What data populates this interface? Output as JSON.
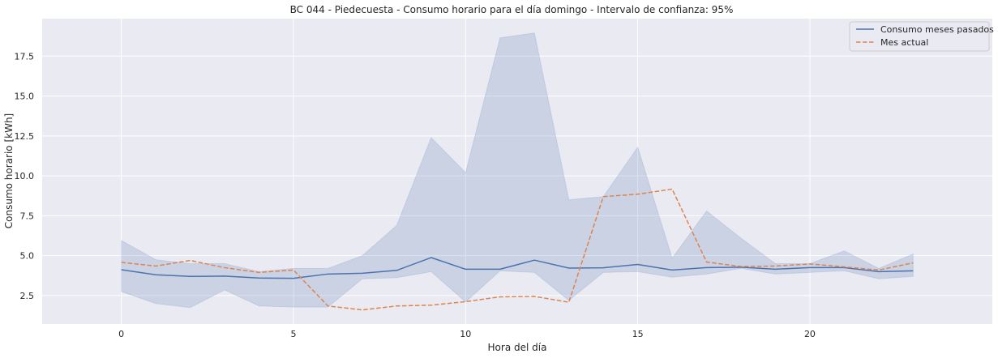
{
  "chart_data": {
    "type": "line",
    "title": "BC 044 - Piedecuesta - Consumo horario para el día domingo - Intervalo de confianza: 95%",
    "xlabel": "Hora del día",
    "ylabel": "Consumo horario [kWh]",
    "x": [
      0,
      1,
      2,
      3,
      4,
      5,
      6,
      7,
      8,
      9,
      10,
      11,
      12,
      13,
      14,
      15,
      16,
      17,
      18,
      19,
      20,
      21,
      22,
      23
    ],
    "xlim": [
      -2.3,
      25.3
    ],
    "ylim": [
      0.72,
      19.85
    ],
    "xticks": [
      0,
      5,
      10,
      15,
      20
    ],
    "yticks": [
      2.5,
      5.0,
      7.5,
      10.0,
      12.5,
      15.0,
      17.5
    ],
    "xtick_labels": [
      "0",
      "5",
      "10",
      "15",
      "20"
    ],
    "ytick_labels": [
      "2.5",
      "5.0",
      "7.5",
      "10.0",
      "12.5",
      "15.0",
      "17.5"
    ],
    "grid": true,
    "legend_position": "top-right",
    "series": [
      {
        "name": "Consumo meses pasados",
        "color": "#4c72b0",
        "style": "solid",
        "values": [
          4.12,
          3.8,
          3.7,
          3.72,
          3.6,
          3.58,
          3.85,
          3.9,
          4.08,
          4.88,
          4.15,
          4.15,
          4.72,
          4.22,
          4.24,
          4.45,
          4.1,
          4.25,
          4.28,
          4.15,
          4.25,
          4.25,
          4.0,
          4.05
        ],
        "ci_lower": [
          2.75,
          2.0,
          1.75,
          2.85,
          1.85,
          1.78,
          1.78,
          3.55,
          3.62,
          4.0,
          2.1,
          4.05,
          3.95,
          2.2,
          3.95,
          4.0,
          3.65,
          3.85,
          4.2,
          3.85,
          3.95,
          4.05,
          3.55,
          3.7
        ],
        "ci_upper": [
          5.95,
          4.75,
          4.5,
          4.5,
          4.0,
          4.2,
          4.2,
          5.0,
          6.9,
          12.4,
          10.2,
          18.65,
          18.95,
          8.5,
          8.7,
          11.8,
          4.85,
          7.8,
          6.1,
          4.5,
          4.5,
          5.3,
          4.2,
          5.1
        ],
        "ci_fill": "#4c72b0"
      },
      {
        "name": "Mes actual",
        "color": "#dd8452",
        "style": "dashed",
        "values": [
          4.58,
          4.35,
          4.7,
          4.25,
          3.95,
          4.1,
          1.85,
          1.6,
          1.85,
          1.9,
          2.12,
          2.42,
          2.45,
          2.08,
          8.7,
          8.85,
          9.17,
          4.6,
          4.32,
          4.35,
          4.48,
          4.3,
          4.1,
          4.55
        ]
      }
    ]
  },
  "style": {
    "plot_background": "#eaeaf2",
    "grid_color": "#ffffff",
    "text_color": "#262626"
  }
}
